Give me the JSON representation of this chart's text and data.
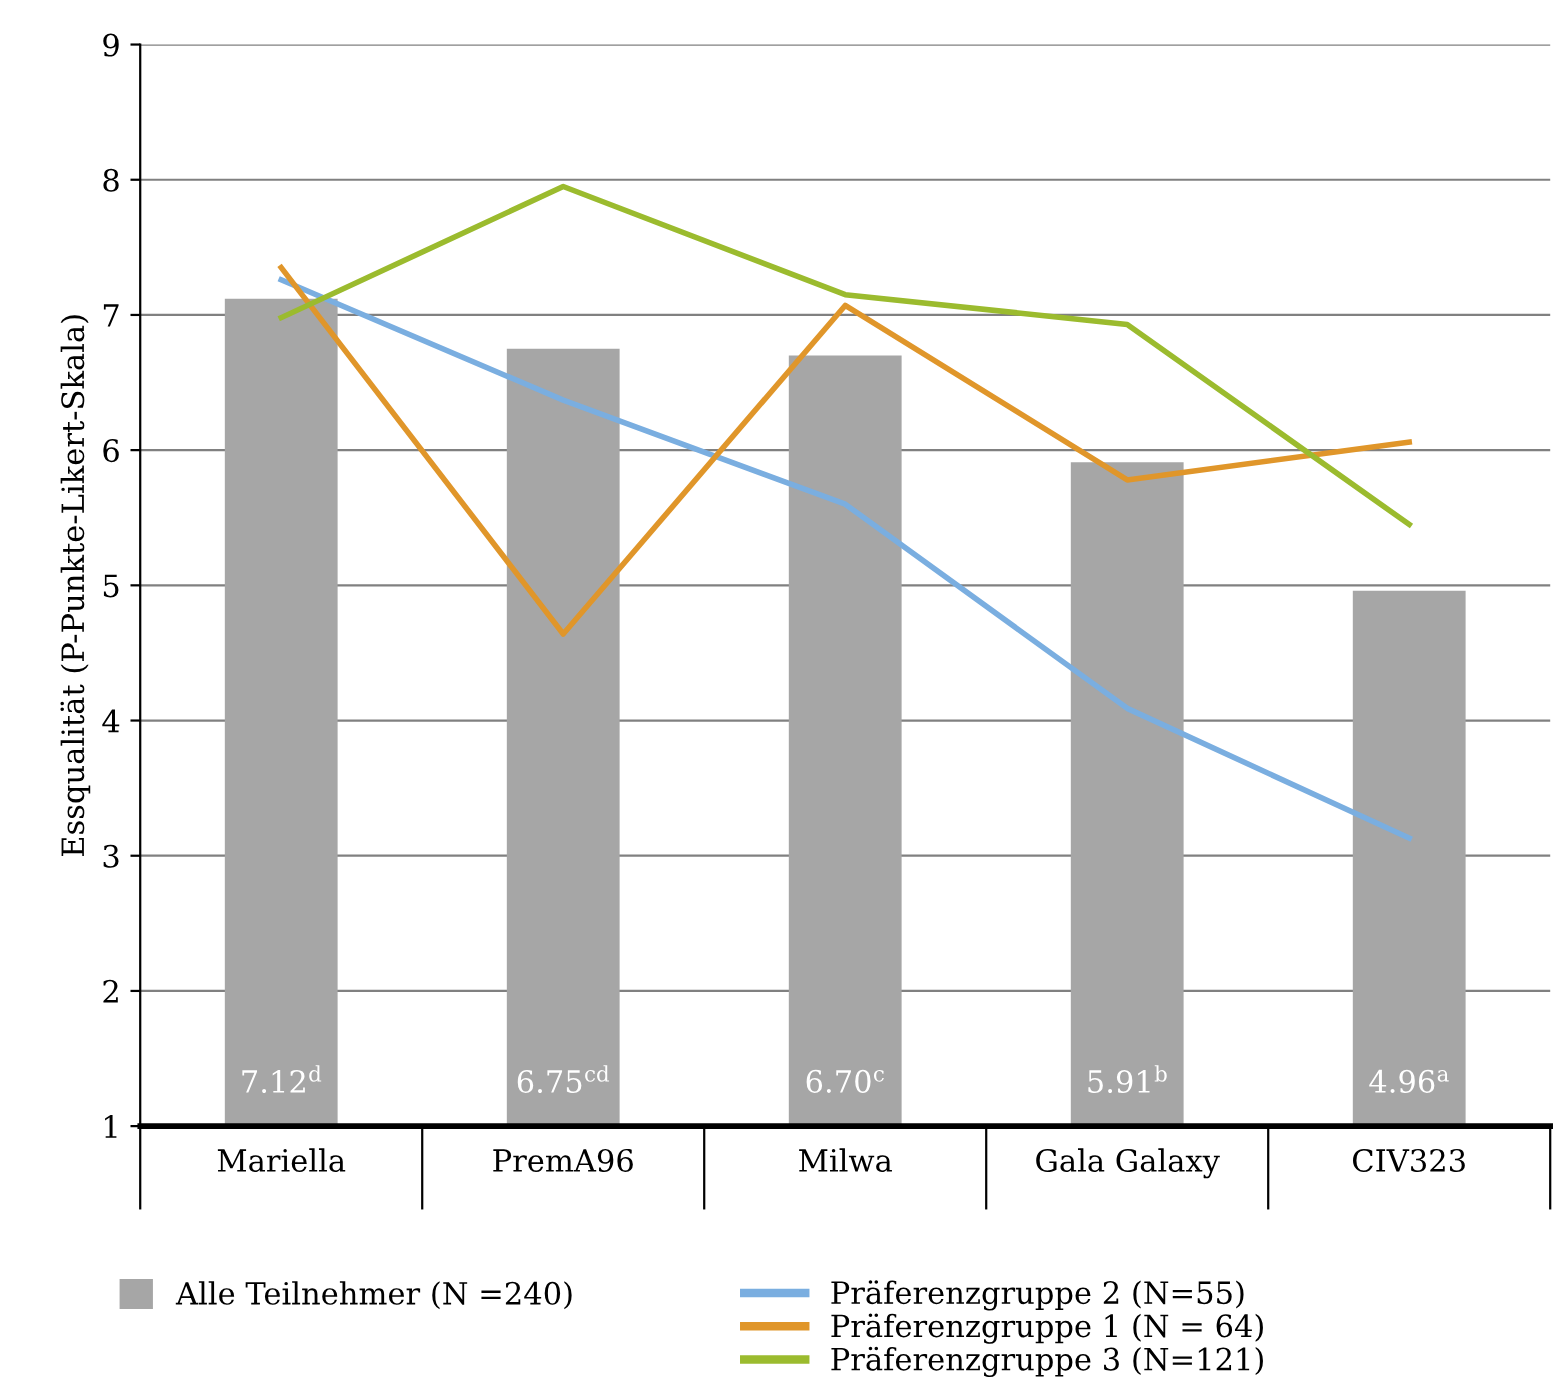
{
  "chart_data": {
    "type": "bar",
    "ylabel": "Essqualität (P-Punkte-Likert-Skala)",
    "categories": [
      "Mariella",
      "PremA96",
      "Milwa",
      "Gala Galaxy",
      "CIV323"
    ],
    "series": [
      {
        "name": "Alle Teilnehmer (N =240)",
        "color": "#a6a6a6",
        "values": [
          7.12,
          6.75,
          6.7,
          5.91,
          4.96
        ],
        "value_labels": [
          "7.12$^{d}$",
          "6.75$^{cd}$",
          "6.70$^{c}$",
          "5.91$^{b}$",
          "4.96$^{a}$"
        ]
      },
      {
        "name": "Präferenzgruppe 2 (N=55)",
        "type": "line",
        "color": "#7aaee0",
        "values": [
          7.26,
          6.37,
          5.6,
          4.09,
          3.13
        ]
      },
      {
        "name": "Präferenzgruppe 1 (N = 64)",
        "type": "line",
        "color": "#e0962a",
        "values": [
          7.35,
          4.64,
          7.07,
          5.78,
          6.06
        ]
      },
      {
        "name": "Präferenzgruppe 3 (N=121)",
        "type": "line",
        "color": "#9bbb2e",
        "values": [
          6.98,
          7.95,
          7.15,
          6.93,
          5.45
        ]
      }
    ],
    "ylim": [
      1,
      9
    ],
    "yticks": [
      1,
      2,
      3,
      4,
      5,
      6,
      7,
      8,
      9
    ],
    "grid": "y",
    "legend": "bottom",
    "marker": "none",
    "line_style": "solid"
  }
}
